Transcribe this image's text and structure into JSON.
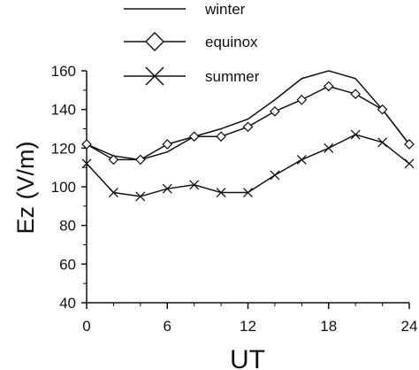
{
  "chart_data": {
    "type": "line",
    "xlabel": "UT",
    "ylabel": "Ez (V/m)",
    "xlim": [
      0,
      24
    ],
    "ylim": [
      40,
      160
    ],
    "xticks": [
      0,
      6,
      12,
      18,
      24
    ],
    "yticks": [
      40,
      60,
      80,
      100,
      120,
      140,
      160
    ],
    "grid": false,
    "legend_position": "top-center",
    "series": [
      {
        "name": "winter",
        "marker": "none",
        "x": [
          0,
          2,
          4,
          6,
          8,
          10,
          12,
          14,
          16,
          18,
          20,
          22,
          24
        ],
        "values": [
          122,
          116,
          114,
          118,
          126,
          130,
          135,
          145,
          156,
          160,
          156,
          140,
          122
        ]
      },
      {
        "name": "equinox",
        "marker": "diamond",
        "x": [
          0,
          2,
          4,
          6,
          8,
          10,
          12,
          14,
          16,
          18,
          20,
          22,
          24
        ],
        "values": [
          122,
          114,
          114,
          122,
          126,
          126,
          131,
          139,
          145,
          152,
          148,
          140,
          122
        ]
      },
      {
        "name": "summer",
        "marker": "x",
        "x": [
          0,
          2,
          4,
          6,
          8,
          10,
          12,
          14,
          16,
          18,
          20,
          22,
          24
        ],
        "values": [
          112,
          97,
          95,
          99,
          101,
          97,
          97,
          106,
          114,
          120,
          127,
          123,
          112
        ]
      }
    ]
  }
}
